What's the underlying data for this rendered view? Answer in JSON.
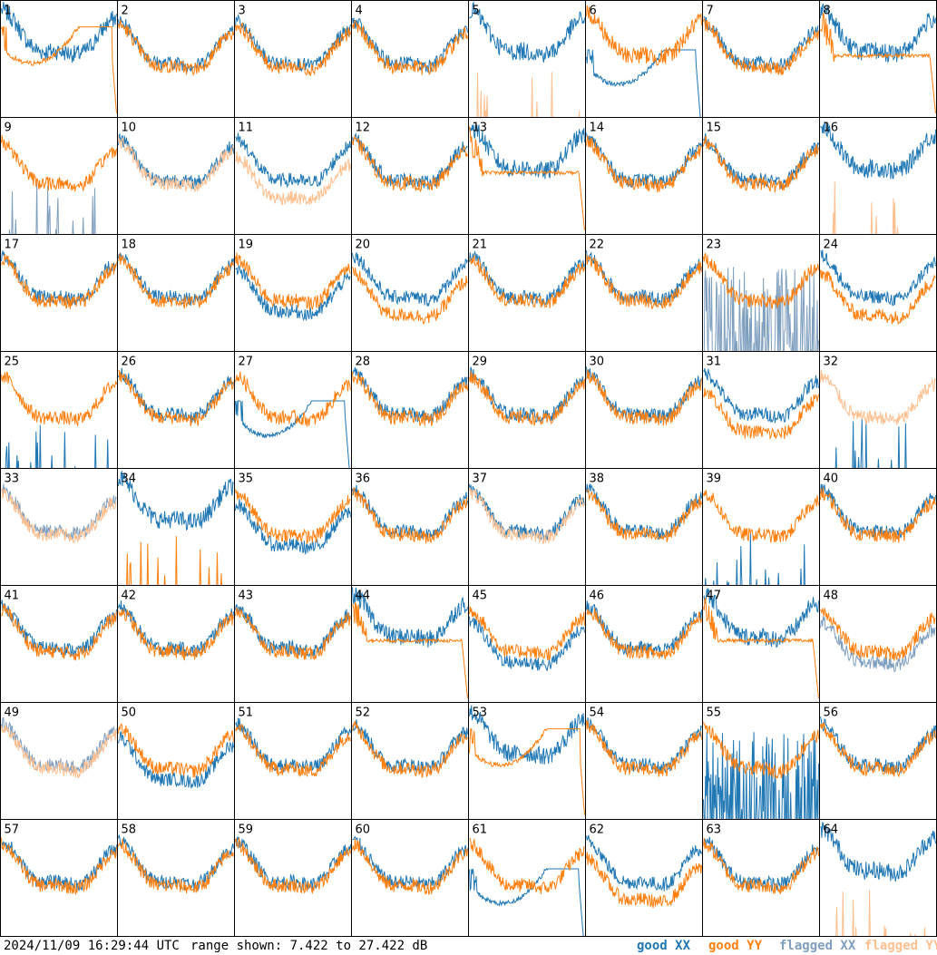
{
  "footer": {
    "timestamp": "2024/11/09 16:29:44 UTC",
    "range_text": "range shown: 7.422 to 27.422 dB"
  },
  "legend": [
    {
      "label": "good XX",
      "color": "#1f77b4"
    },
    {
      "label": "good YY",
      "color": "#ff7f0e"
    },
    {
      "label": "flagged XX",
      "color": "#7f9fbf"
    },
    {
      "label": "flagged YY",
      "color": "#ffbf8f"
    }
  ],
  "chart_data": {
    "type": "line",
    "title": "",
    "ylim": [
      7.422,
      27.422
    ],
    "yunit": "dB",
    "grid": "8x8 small multiples",
    "series_names": [
      "good XX",
      "good YY",
      "flagged XX",
      "flagged YY"
    ],
    "panels": [
      {
        "id": "1",
        "xx": "bump",
        "yy": "dip",
        "xx_flag": false,
        "yy_flag": false
      },
      {
        "id": "2",
        "xx": "normal",
        "yy": "normal",
        "xx_flag": false,
        "yy_flag": false
      },
      {
        "id": "3",
        "xx": "normal",
        "yy": "normal",
        "xx_flag": false,
        "yy_flag": false
      },
      {
        "id": "4",
        "xx": "normal",
        "yy": "normal",
        "xx_flag": false,
        "yy_flag": false
      },
      {
        "id": "5",
        "xx": "bump",
        "yy": "spikes",
        "xx_flag": false,
        "yy_flag": true
      },
      {
        "id": "6",
        "xx": "deepdip",
        "yy": "bump",
        "xx_flag": false,
        "yy_flag": false
      },
      {
        "id": "7",
        "xx": "normal",
        "yy": "normal",
        "xx_flag": false,
        "yy_flag": false
      },
      {
        "id": "8",
        "xx": "bump",
        "yy": "flat",
        "xx_flag": false,
        "yy_flag": false
      },
      {
        "id": "9",
        "xx": "spikes",
        "yy": "normal",
        "xx_flag": true,
        "yy_flag": false
      },
      {
        "id": "10",
        "xx": "normal",
        "yy": "normal",
        "xx_flag": false,
        "yy_flag": true
      },
      {
        "id": "11",
        "xx": "normal",
        "yy": "low",
        "xx_flag": false,
        "yy_flag": true
      },
      {
        "id": "12",
        "xx": "normal",
        "yy": "normal",
        "xx_flag": false,
        "yy_flag": false
      },
      {
        "id": "13",
        "xx": "bump",
        "yy": "flat",
        "xx_flag": false,
        "yy_flag": false
      },
      {
        "id": "14",
        "xx": "normal",
        "yy": "normal",
        "xx_flag": false,
        "yy_flag": false
      },
      {
        "id": "15",
        "xx": "normal",
        "yy": "normal",
        "xx_flag": false,
        "yy_flag": false
      },
      {
        "id": "16",
        "xx": "bump",
        "yy": "spikes",
        "xx_flag": false,
        "yy_flag": true
      },
      {
        "id": "17",
        "xx": "normal",
        "yy": "normal",
        "xx_flag": false,
        "yy_flag": false
      },
      {
        "id": "18",
        "xx": "normal",
        "yy": "normal",
        "xx_flag": false,
        "yy_flag": false
      },
      {
        "id": "19",
        "xx": "low",
        "yy": "normal",
        "xx_flag": false,
        "yy_flag": false
      },
      {
        "id": "20",
        "xx": "normal",
        "yy": "low",
        "xx_flag": false,
        "yy_flag": false
      },
      {
        "id": "21",
        "xx": "normal",
        "yy": "normal",
        "xx_flag": false,
        "yy_flag": false
      },
      {
        "id": "22",
        "xx": "normal",
        "yy": "normal",
        "xx_flag": false,
        "yy_flag": false
      },
      {
        "id": "23",
        "xx": "spikesdense",
        "yy": "normal",
        "xx_flag": true,
        "yy_flag": false
      },
      {
        "id": "24",
        "xx": "normal",
        "yy": "low",
        "xx_flag": false,
        "yy_flag": false
      },
      {
        "id": "25",
        "xx": "spikes",
        "yy": "normal",
        "xx_flag": false,
        "yy_flag": false
      },
      {
        "id": "26",
        "xx": "normal",
        "yy": "normal",
        "xx_flag": false,
        "yy_flag": false
      },
      {
        "id": "27",
        "xx": "deepdip",
        "yy": "normal",
        "xx_flag": false,
        "yy_flag": false
      },
      {
        "id": "28",
        "xx": "normal",
        "yy": "normal",
        "xx_flag": false,
        "yy_flag": false
      },
      {
        "id": "29",
        "xx": "normal",
        "yy": "normal",
        "xx_flag": false,
        "yy_flag": false
      },
      {
        "id": "30",
        "xx": "normal",
        "yy": "normal",
        "xx_flag": false,
        "yy_flag": false
      },
      {
        "id": "31",
        "xx": "normal",
        "yy": "low",
        "xx_flag": false,
        "yy_flag": false
      },
      {
        "id": "32",
        "xx": "spikes",
        "yy": "normal",
        "xx_flag": false,
        "yy_flag": true
      },
      {
        "id": "33",
        "xx": "normal",
        "yy": "normal",
        "xx_flag": true,
        "yy_flag": true
      },
      {
        "id": "34",
        "xx": "bump",
        "yy": "spikes",
        "xx_flag": false,
        "yy_flag": false
      },
      {
        "id": "35",
        "xx": "low",
        "yy": "normal",
        "xx_flag": false,
        "yy_flag": false
      },
      {
        "id": "36",
        "xx": "normal",
        "yy": "normal",
        "xx_flag": false,
        "yy_flag": false
      },
      {
        "id": "37",
        "xx": "normal",
        "yy": "normal",
        "xx_flag": false,
        "yy_flag": true
      },
      {
        "id": "38",
        "xx": "normal",
        "yy": "normal",
        "xx_flag": false,
        "yy_flag": false
      },
      {
        "id": "39",
        "xx": "spikes",
        "yy": "normal",
        "xx_flag": false,
        "yy_flag": false
      },
      {
        "id": "40",
        "xx": "normal",
        "yy": "normal",
        "xx_flag": false,
        "yy_flag": false
      },
      {
        "id": "41",
        "xx": "normal",
        "yy": "normal",
        "xx_flag": false,
        "yy_flag": false
      },
      {
        "id": "42",
        "xx": "normal",
        "yy": "normal",
        "xx_flag": false,
        "yy_flag": false
      },
      {
        "id": "43",
        "xx": "normal",
        "yy": "normal",
        "xx_flag": false,
        "yy_flag": false
      },
      {
        "id": "44",
        "xx": "bump",
        "yy": "flat",
        "xx_flag": false,
        "yy_flag": false
      },
      {
        "id": "45",
        "xx": "low",
        "yy": "normal",
        "xx_flag": false,
        "yy_flag": false
      },
      {
        "id": "46",
        "xx": "normal",
        "yy": "normal",
        "xx_flag": false,
        "yy_flag": false
      },
      {
        "id": "47",
        "xx": "bump",
        "yy": "flat",
        "xx_flag": false,
        "yy_flag": false
      },
      {
        "id": "48",
        "xx": "low",
        "yy": "normal",
        "xx_flag": true,
        "yy_flag": false
      },
      {
        "id": "49",
        "xx": "normal",
        "yy": "normal",
        "xx_flag": true,
        "yy_flag": true
      },
      {
        "id": "50",
        "xx": "low",
        "yy": "normal",
        "xx_flag": false,
        "yy_flag": false
      },
      {
        "id": "51",
        "xx": "normal",
        "yy": "normal",
        "xx_flag": false,
        "yy_flag": false
      },
      {
        "id": "52",
        "xx": "normal",
        "yy": "normal",
        "xx_flag": false,
        "yy_flag": false
      },
      {
        "id": "53",
        "xx": "bump",
        "yy": "dip",
        "xx_flag": false,
        "yy_flag": false
      },
      {
        "id": "54",
        "xx": "normal",
        "yy": "normal",
        "xx_flag": false,
        "yy_flag": false
      },
      {
        "id": "55",
        "xx": "spikesdense",
        "yy": "normal",
        "xx_flag": false,
        "yy_flag": false
      },
      {
        "id": "56",
        "xx": "normal",
        "yy": "normal",
        "xx_flag": false,
        "yy_flag": false
      },
      {
        "id": "57",
        "xx": "normal",
        "yy": "normal",
        "xx_flag": false,
        "yy_flag": false
      },
      {
        "id": "58",
        "xx": "normal",
        "yy": "normal",
        "xx_flag": false,
        "yy_flag": false
      },
      {
        "id": "59",
        "xx": "normal",
        "yy": "normal",
        "xx_flag": false,
        "yy_flag": false
      },
      {
        "id": "60",
        "xx": "normal",
        "yy": "normal",
        "xx_flag": false,
        "yy_flag": false
      },
      {
        "id": "61",
        "xx": "deepdip",
        "yy": "normal",
        "xx_flag": false,
        "yy_flag": false
      },
      {
        "id": "62",
        "xx": "normal",
        "yy": "low",
        "xx_flag": false,
        "yy_flag": false
      },
      {
        "id": "63",
        "xx": "normal",
        "yy": "normal",
        "xx_flag": false,
        "yy_flag": false
      },
      {
        "id": "64",
        "xx": "bump",
        "yy": "spikes",
        "xx_flag": false,
        "yy_flag": true
      }
    ]
  }
}
